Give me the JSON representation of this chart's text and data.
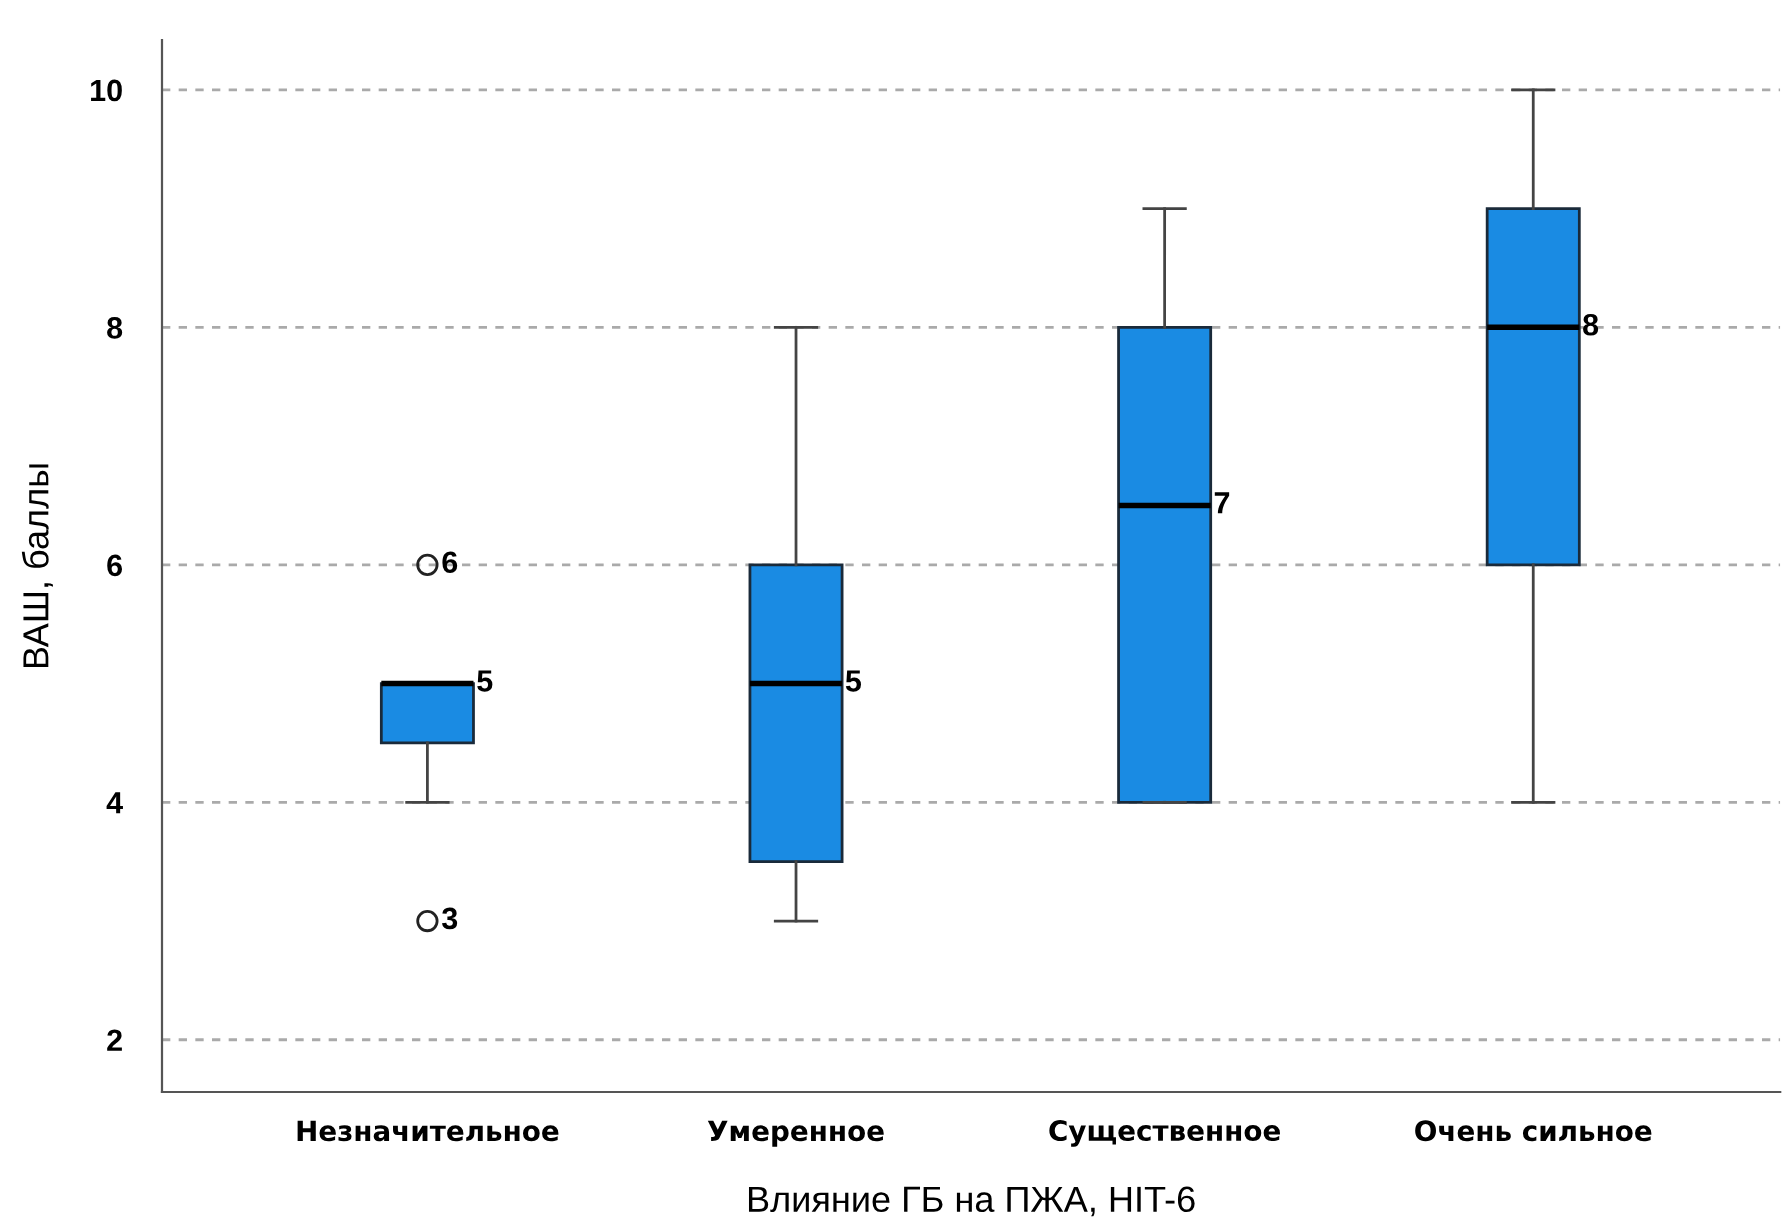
{
  "chart_data": {
    "type": "box",
    "categories": [
      "Незначительное",
      "Умеренное",
      "Существенное",
      "Очень сильное"
    ],
    "series": [
      {
        "color": "#1a8be3",
        "boxes": [
          {
            "low": 4,
            "q1": 4.5,
            "median": 5,
            "q3": 5,
            "high": 5
          },
          {
            "low": 3,
            "q1": 3.5,
            "median": 5,
            "q3": 6,
            "high": 8
          },
          {
            "low": 4,
            "q1": 4,
            "median": 6.5,
            "q3": 8,
            "high": 9
          },
          {
            "low": 4,
            "q1": 6,
            "median": 8,
            "q3": 9,
            "high": 10
          }
        ]
      },
      {
        "type": "scatter",
        "color": "#222222",
        "marker": "circle",
        "x": [
          "Незначительное",
          "Незначительное"
        ],
        "values": [
          6,
          3
        ]
      }
    ],
    "xlabel": "Влияние ГБ на ПЖА, HIT-6",
    "ylabel": "ВАШ, баллы",
    "ylim": [
      1.56,
      10.42
    ],
    "yticks": [
      2,
      4,
      6,
      8,
      10
    ],
    "grid": "y",
    "annotations": [
      {
        "text": "6",
        "x": "Незначительное",
        "y": 6
      },
      {
        "text": "3",
        "x": "Незначительное",
        "y": 3
      },
      {
        "text": "5",
        "x": "Незначительное",
        "y": 5
      },
      {
        "text": "5",
        "x": "Умеренное",
        "y": 5
      },
      {
        "text": "7",
        "x": "Существенное",
        "y": 6.5
      },
      {
        "text": "8",
        "x": "Очень сильное",
        "y": 8
      }
    ]
  }
}
